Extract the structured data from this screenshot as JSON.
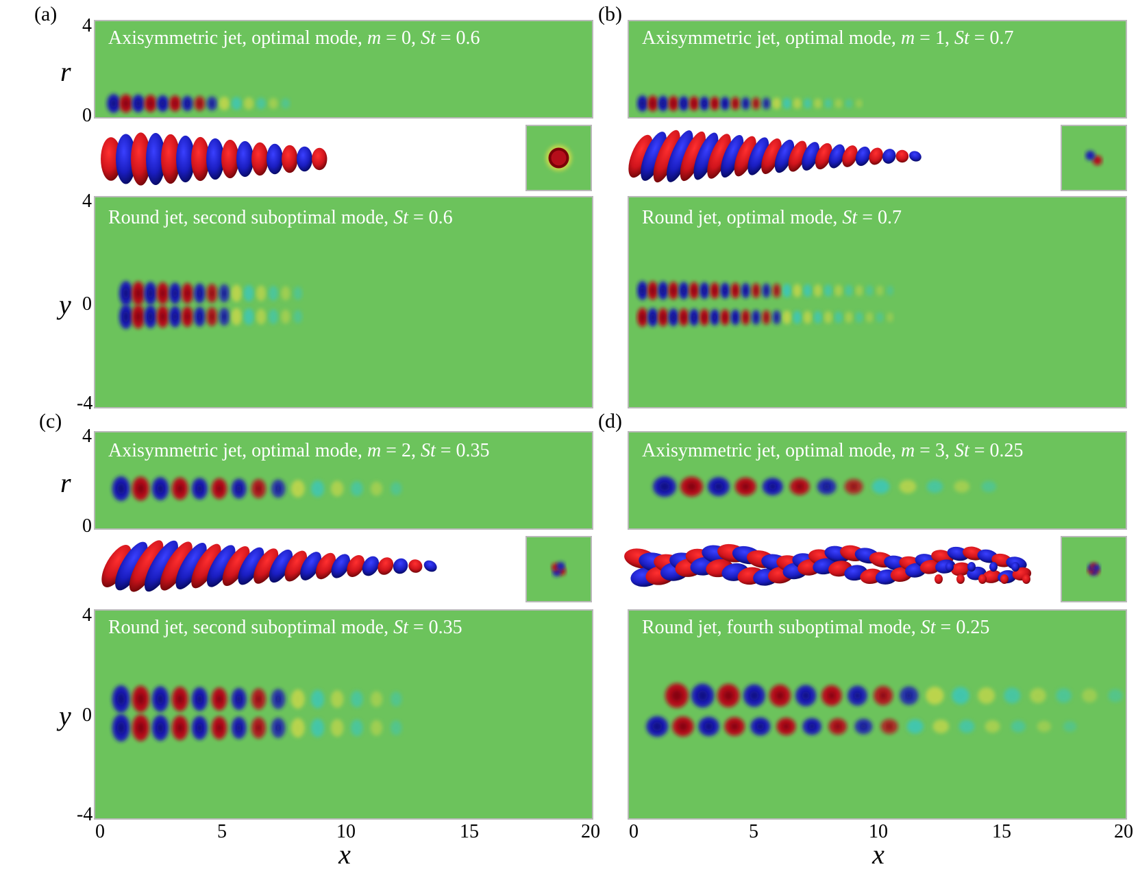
{
  "panel_letters": {
    "a": "(a)",
    "b": "(b)",
    "c": "(c)",
    "d": "(d)"
  },
  "axis_symbols": {
    "r": "r",
    "y": "y",
    "x": "x"
  },
  "r_ticks": [
    "4",
    "0"
  ],
  "y_ticks": [
    "4",
    "0",
    "-4"
  ],
  "x_ticks": [
    "0",
    "5",
    "10",
    "15",
    "20"
  ],
  "colors": {
    "background": "#6cc35c",
    "red": "#b50e1a",
    "blue": "#1b1fb4",
    "cyan": "#34c7c7",
    "yellow": "#cfd94a"
  },
  "titles": {
    "a_top": [
      {
        "t": "Axisymmetric jet, optimal mode, "
      },
      {
        "t": "m",
        "i": true
      },
      {
        "t": " = 0, "
      },
      {
        "t": "St",
        "i": true
      },
      {
        "t": " = 0.6"
      }
    ],
    "a_bot": [
      {
        "t": "Round jet, second suboptimal mode, "
      },
      {
        "t": "St",
        "i": true
      },
      {
        "t": " = 0.6"
      }
    ],
    "b_top": [
      {
        "t": "Axisymmetric jet, optimal mode, "
      },
      {
        "t": "m",
        "i": true
      },
      {
        "t": " = 1, "
      },
      {
        "t": "St",
        "i": true
      },
      {
        "t": " = 0.7"
      }
    ],
    "b_bot": [
      {
        "t": "Round jet, optimal mode, "
      },
      {
        "t": "St",
        "i": true
      },
      {
        "t": " = 0.7"
      }
    ],
    "c_top": [
      {
        "t": "Axisymmetric jet, optimal mode, "
      },
      {
        "t": "m",
        "i": true
      },
      {
        "t": " = 2, "
      },
      {
        "t": "St",
        "i": true
      },
      {
        "t": " = 0.35"
      }
    ],
    "c_bot": [
      {
        "t": "Round jet, second suboptimal mode, "
      },
      {
        "t": "St",
        "i": true
      },
      {
        "t": " = 0.35"
      }
    ],
    "d_top": [
      {
        "t": "Axisymmetric jet, optimal mode, "
      },
      {
        "t": "m",
        "i": true
      },
      {
        "t": " = 3, "
      },
      {
        "t": "St",
        "i": true
      },
      {
        "t": " = 0.25"
      }
    ],
    "d_bot": [
      {
        "t": "Round jet, fourth suboptimal mode, "
      },
      {
        "t": "St",
        "i": true
      },
      {
        "t": " = 0.25"
      }
    ]
  },
  "panels": {
    "a": {
      "m": 0,
      "St": 0.6
    },
    "b": {
      "m": 1,
      "St": 0.7
    },
    "c": {
      "m": 2,
      "St": 0.35
    },
    "d": {
      "m": 3,
      "St": 0.25
    }
  }
}
